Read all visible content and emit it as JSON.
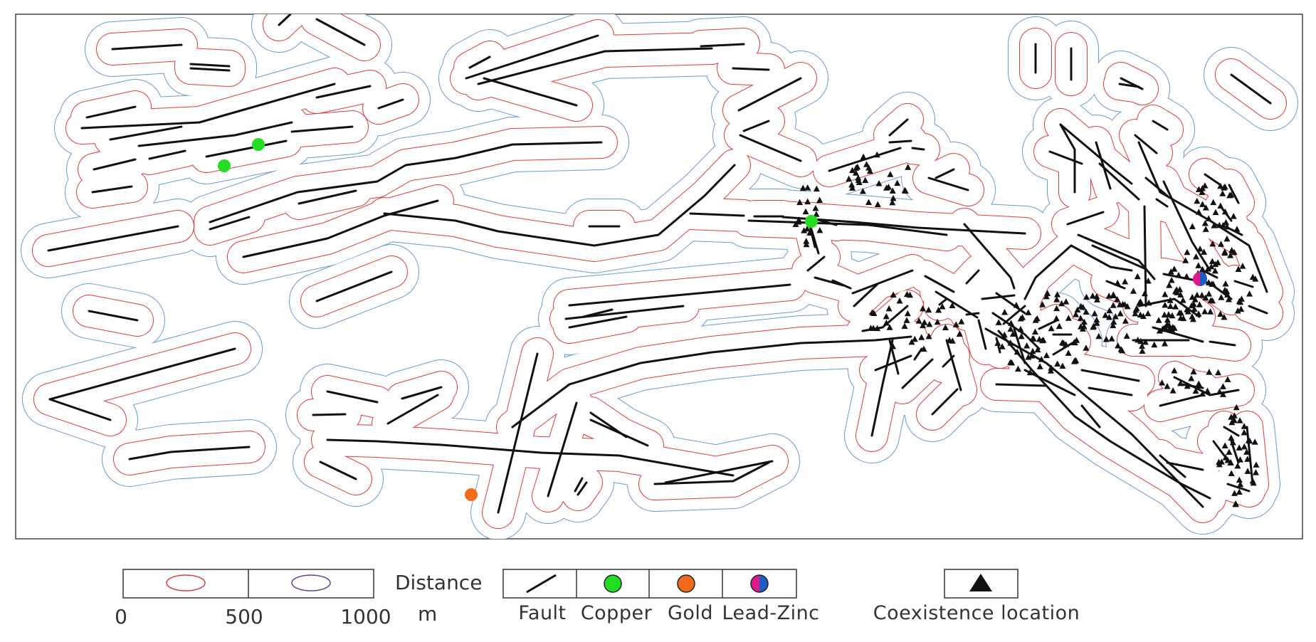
{
  "legend": {
    "buffer_scale": {
      "ticks": [
        "0",
        "500",
        "1000"
      ],
      "unit": "m",
      "title": "Distance"
    },
    "symbols": [
      {
        "key": "fault",
        "label": "Fault"
      },
      {
        "key": "copper",
        "label": "Copper",
        "color": "#22dd22"
      },
      {
        "key": "gold",
        "label": "Gold",
        "color": "#f26a1b"
      },
      {
        "key": "lead_zinc",
        "label": "Lead-Zinc",
        "colors": [
          "#e0198a",
          "#1f5bc4"
        ]
      }
    ],
    "coexistence": {
      "label": "Coexistence location"
    }
  },
  "colors": {
    "buffer_500": "#e03b3b",
    "buffer_1000": "#6a9bd0",
    "fault": "#111111"
  }
}
